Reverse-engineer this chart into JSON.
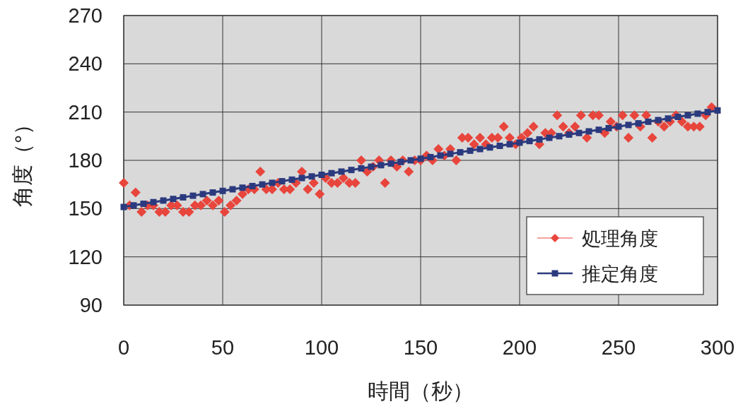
{
  "chart_data": {
    "type": "scatter",
    "xlabel": "時間（秒）",
    "ylabel": "角度（°）",
    "xlim": [
      0,
      300
    ],
    "xticks": [
      0,
      50,
      100,
      150,
      200,
      250,
      300
    ],
    "ylim": [
      90,
      270
    ],
    "yticks": [
      90,
      120,
      150,
      180,
      210,
      240,
      270
    ],
    "grid": true,
    "legend": "bottom right",
    "series": [
      {
        "name": "処理角度",
        "marker": "diamond",
        "color": "#e8453c",
        "x": [
          0,
          3,
          6,
          9,
          12,
          15,
          18,
          21,
          24,
          27,
          30,
          33,
          36,
          39,
          42,
          45,
          48,
          51,
          54,
          57,
          60,
          63,
          66,
          69,
          72,
          75,
          78,
          81,
          84,
          87,
          90,
          93,
          96,
          99,
          102,
          105,
          108,
          111,
          114,
          117,
          120,
          123,
          126,
          129,
          132,
          135,
          138,
          141,
          144,
          147,
          150,
          153,
          156,
          159,
          162,
          165,
          168,
          171,
          174,
          177,
          180,
          183,
          186,
          189,
          192,
          195,
          198,
          201,
          204,
          207,
          210,
          213,
          216,
          219,
          222,
          225,
          228,
          231,
          234,
          237,
          240,
          243,
          246,
          249,
          252,
          255,
          258,
          261,
          264,
          267,
          270,
          273,
          276,
          279,
          282,
          285,
          288,
          291,
          294,
          297
        ],
        "values": [
          166,
          152,
          160,
          148,
          152,
          152,
          148,
          148,
          152,
          152,
          148,
          148,
          152,
          152,
          155,
          152,
          155,
          148,
          152,
          155,
          159,
          162,
          162,
          173,
          162,
          162,
          166,
          162,
          162,
          166,
          173,
          162,
          166,
          159,
          169,
          166,
          166,
          169,
          166,
          166,
          180,
          173,
          176,
          180,
          166,
          180,
          176,
          180,
          173,
          180,
          180,
          183,
          180,
          187,
          183,
          187,
          180,
          194,
          194,
          190,
          194,
          190,
          194,
          194,
          201,
          194,
          190,
          194,
          197,
          201,
          190,
          197,
          197,
          208,
          201,
          197,
          201,
          208,
          194,
          208,
          208,
          197,
          204,
          201,
          208,
          194,
          208,
          201,
          208,
          194,
          204,
          201,
          204,
          208,
          204,
          201,
          201,
          201,
          208,
          213
        ]
      },
      {
        "name": "推定角度",
        "type": "line",
        "marker": "square",
        "line_style": "solid",
        "color": "#2b3a7e",
        "x": [
          0,
          5,
          10,
          15,
          20,
          25,
          30,
          35,
          40,
          45,
          50,
          55,
          60,
          65,
          70,
          75,
          80,
          85,
          90,
          95,
          100,
          105,
          110,
          115,
          120,
          125,
          130,
          135,
          140,
          145,
          150,
          155,
          160,
          165,
          170,
          175,
          180,
          185,
          190,
          195,
          200,
          205,
          210,
          215,
          220,
          225,
          230,
          235,
          240,
          245,
          250,
          255,
          260,
          265,
          270,
          275,
          280,
          285,
          290,
          295,
          300
        ],
        "values": [
          151,
          152,
          153,
          154,
          155,
          156,
          157,
          158,
          159,
          160,
          161,
          162,
          163,
          164,
          165,
          166,
          167,
          168,
          169,
          170,
          171,
          172,
          173,
          174,
          175,
          176,
          177,
          178,
          179,
          180,
          181,
          182,
          183,
          184,
          185,
          186,
          187,
          188,
          189,
          190,
          191,
          192,
          193,
          194,
          195,
          196,
          197,
          198,
          199,
          200,
          201,
          202,
          203,
          204,
          205,
          206,
          207,
          208,
          209,
          210,
          211
        ]
      }
    ]
  }
}
